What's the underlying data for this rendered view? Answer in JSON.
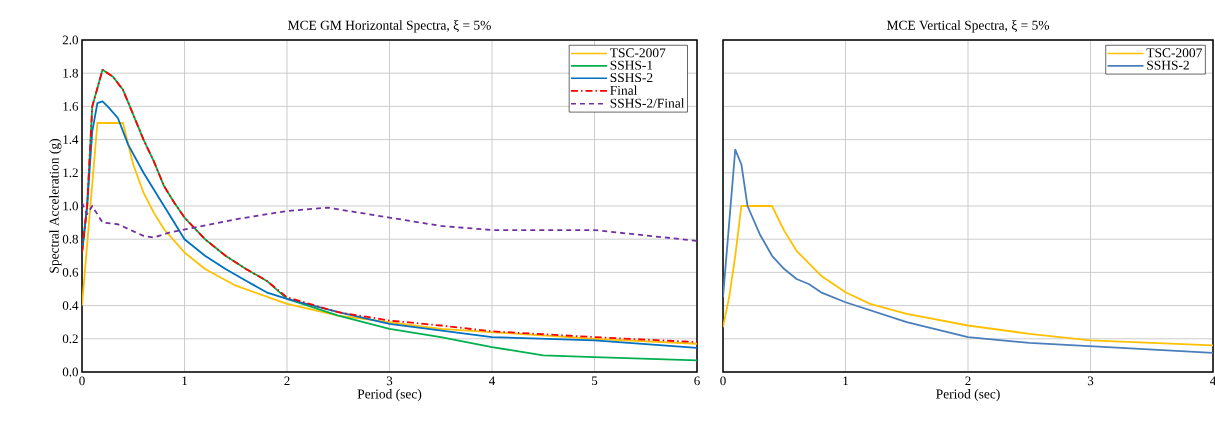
{
  "chart_data": [
    {
      "type": "line",
      "title": "MCE GM Horizontal Spectra, ξ = 5%",
      "xlabel": "Period (sec)",
      "ylabel": "Spectral Acceleration (g)",
      "xlim": [
        0,
        6
      ],
      "ylim": [
        0,
        2
      ],
      "xticks": [
        0,
        1,
        2,
        3,
        4,
        5,
        6
      ],
      "yticks": [
        {
          "value": 0,
          "label": "0.0"
        },
        {
          "value": 0.2,
          "label": "0.2"
        },
        {
          "value": 0.4,
          "label": "0.4"
        },
        {
          "value": 0.6,
          "label": "0.6"
        },
        {
          "value": 0.8,
          "label": "0.8"
        },
        {
          "value": 1,
          "label": "1.0"
        },
        {
          "value": 1.2,
          "label": "1.2"
        },
        {
          "value": 1.4,
          "label": "1.4"
        },
        {
          "value": 1.6,
          "label": "1.6"
        },
        {
          "value": 1.8,
          "label": "1.8"
        },
        {
          "value": 2,
          "label": "2.0"
        }
      ],
      "grid": true,
      "legend": "top right",
      "series": [
        {
          "name": "TSC-2007",
          "color": "#ffc000",
          "line_style": "solid",
          "x": [
            0,
            0.15,
            0.4,
            0.5,
            0.6,
            0.7,
            0.8,
            1.0,
            1.2,
            1.5,
            2.0,
            2.5,
            3.0,
            3.5,
            4.0,
            5.0,
            6.0
          ],
          "values": [
            0.4,
            1.5,
            1.5,
            1.25,
            1.08,
            0.96,
            0.86,
            0.72,
            0.62,
            0.52,
            0.41,
            0.34,
            0.3,
            0.26,
            0.24,
            0.2,
            0.17
          ]
        },
        {
          "name": "SSHS-1",
          "color": "#00b050",
          "line_style": "solid",
          "x": [
            0,
            0.05,
            0.1,
            0.2,
            0.3,
            0.4,
            0.5,
            0.6,
            0.7,
            0.8,
            0.9,
            1.0,
            1.2,
            1.4,
            1.6,
            1.8,
            2.0,
            2.5,
            3.0,
            3.5,
            4.0,
            4.5,
            5.0,
            6.0
          ],
          "values": [
            0.72,
            1.0,
            1.6,
            1.82,
            1.78,
            1.7,
            1.55,
            1.4,
            1.27,
            1.12,
            1.02,
            0.93,
            0.8,
            0.7,
            0.62,
            0.55,
            0.44,
            0.34,
            0.26,
            0.21,
            0.15,
            0.1,
            0.09,
            0.07
          ]
        },
        {
          "name": "SSHS-2",
          "color": "#0070c0",
          "line_style": "solid",
          "x": [
            0,
            0.05,
            0.1,
            0.15,
            0.2,
            0.25,
            0.35,
            0.45,
            0.6,
            0.75,
            0.9,
            1.0,
            1.2,
            1.4,
            1.6,
            1.8,
            2.0,
            2.5,
            3.0,
            3.5,
            4.0,
            5.0,
            6.0
          ],
          "values": [
            0.72,
            1.0,
            1.45,
            1.62,
            1.63,
            1.6,
            1.53,
            1.37,
            1.2,
            1.05,
            0.9,
            0.8,
            0.7,
            0.62,
            0.55,
            0.48,
            0.44,
            0.36,
            0.29,
            0.25,
            0.21,
            0.19,
            0.145
          ]
        },
        {
          "name": "Final",
          "color": "#ff0000",
          "line_style": "dashdot",
          "x": [
            0,
            0.05,
            0.1,
            0.2,
            0.3,
            0.4,
            0.5,
            0.6,
            0.7,
            0.8,
            0.9,
            1.0,
            1.2,
            1.4,
            1.6,
            1.8,
            2.0,
            2.5,
            3.0,
            3.5,
            4.0,
            5.0,
            6.0
          ],
          "values": [
            0.72,
            1.0,
            1.6,
            1.82,
            1.78,
            1.7,
            1.55,
            1.4,
            1.27,
            1.12,
            1.02,
            0.93,
            0.8,
            0.7,
            0.62,
            0.55,
            0.45,
            0.36,
            0.31,
            0.28,
            0.245,
            0.21,
            0.18
          ]
        },
        {
          "name": "SSHS-2/Final",
          "color": "#7030a0",
          "line_style": "dashed",
          "x": [
            0,
            0.05,
            0.1,
            0.2,
            0.35,
            0.6,
            0.7,
            0.85,
            1.1,
            1.5,
            2.0,
            2.4,
            2.7,
            3.0,
            3.5,
            4.0,
            5.0,
            6.0
          ],
          "values": [
            1.02,
            0.95,
            1.0,
            0.9,
            0.89,
            0.82,
            0.81,
            0.84,
            0.87,
            0.92,
            0.97,
            0.99,
            0.96,
            0.93,
            0.88,
            0.855,
            0.855,
            0.79
          ]
        }
      ]
    },
    {
      "type": "line",
      "title": "MCE Vertical Spectra, ξ = 5%",
      "xlabel": "Period (sec)",
      "xlim": [
        0,
        4
      ],
      "ylim": [
        0,
        2
      ],
      "xticks": [
        0,
        1,
        2,
        3,
        4
      ],
      "yticks": [
        {
          "value": 0,
          "label": null
        },
        {
          "value": 0.2,
          "label": null
        },
        {
          "value": 0.4,
          "label": null
        },
        {
          "value": 0.6,
          "label": null
        },
        {
          "value": 0.8,
          "label": null
        },
        {
          "value": 1,
          "label": null
        },
        {
          "value": 1.2,
          "label": null
        },
        {
          "value": 1.4,
          "label": null
        },
        {
          "value": 1.6,
          "label": null
        },
        {
          "value": 1.8,
          "label": null
        },
        {
          "value": 2,
          "label": null
        }
      ],
      "tick_labels": "x",
      "grid": true,
      "legend": "top right",
      "series": [
        {
          "name": "TSC-2007",
          "color": "#ffc000",
          "line_style": "solid",
          "x": [
            0,
            0.05,
            0.1,
            0.15,
            0.4,
            0.5,
            0.6,
            0.8,
            1.0,
            1.2,
            1.5,
            2.0,
            2.5,
            3.0,
            3.5,
            4.0
          ],
          "values": [
            0.27,
            0.45,
            0.7,
            1.0,
            1.0,
            0.85,
            0.73,
            0.58,
            0.48,
            0.41,
            0.35,
            0.28,
            0.23,
            0.19,
            0.175,
            0.16
          ]
        },
        {
          "name": "SSHS-2",
          "color": "#4a7ebb",
          "line_style": "solid",
          "x": [
            0,
            0.1,
            0.15,
            0.2,
            0.3,
            0.4,
            0.5,
            0.6,
            0.7,
            0.8,
            1.0,
            1.5,
            2.0,
            2.5,
            3.0,
            3.5,
            4.0
          ],
          "values": [
            0.45,
            1.34,
            1.25,
            1.0,
            0.83,
            0.7,
            0.62,
            0.56,
            0.53,
            0.48,
            0.42,
            0.3,
            0.21,
            0.175,
            0.155,
            0.135,
            0.115
          ]
        }
      ]
    }
  ]
}
